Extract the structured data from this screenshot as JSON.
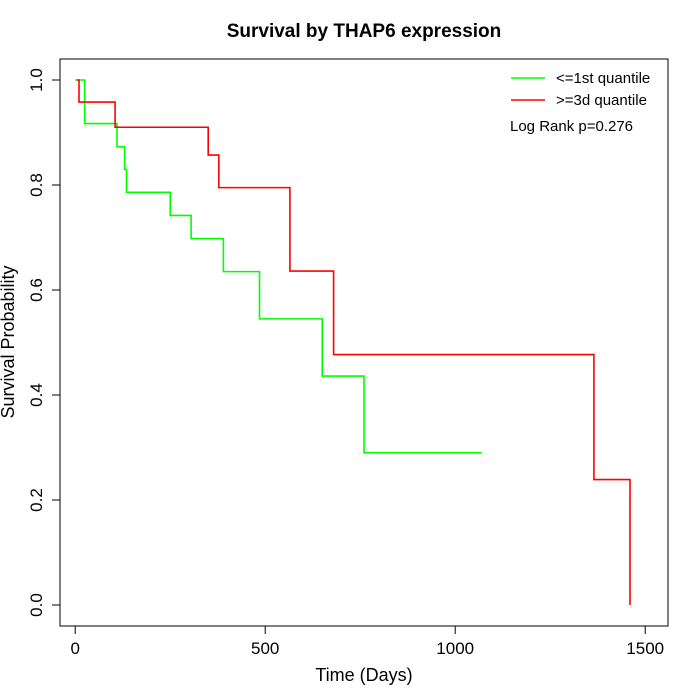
{
  "chart_data": {
    "type": "line",
    "title": "Survival by THAP6 expression",
    "xlabel": "Time (Days)",
    "ylabel": "Survival Probability",
    "xlim": [
      -40,
      1560
    ],
    "ylim": [
      -0.04,
      1.04
    ],
    "x_ticks": [
      0,
      500,
      1000,
      1500
    ],
    "y_ticks": [
      0.0,
      0.2,
      0.4,
      0.6,
      0.8,
      1.0
    ],
    "x_tick_labels": [
      "0",
      "500",
      "1000",
      "1500"
    ],
    "y_tick_labels": [
      "0.0",
      "0.2",
      "0.4",
      "0.6",
      "0.8",
      "1.0"
    ],
    "grid": false,
    "legend_position": "top-right",
    "annotation": "Log Rank p=0.276",
    "series": [
      {
        "name": "<=1st quantile",
        "color": "#00ff00",
        "steps": [
          [
            0,
            1.0
          ],
          [
            25,
            0.917
          ],
          [
            110,
            0.873
          ],
          [
            130,
            0.83
          ],
          [
            135,
            0.786
          ],
          [
            250,
            0.742
          ],
          [
            305,
            0.698
          ],
          [
            390,
            0.635
          ],
          [
            485,
            0.545
          ],
          [
            650,
            0.436
          ],
          [
            760,
            0.29
          ],
          [
            1070,
            0.29
          ]
        ]
      },
      {
        "name": ">=3d quantile",
        "color": "#ff0000",
        "steps": [
          [
            5,
            1.0
          ],
          [
            10,
            0.958
          ],
          [
            105,
            0.91
          ],
          [
            350,
            0.857
          ],
          [
            378,
            0.795
          ],
          [
            565,
            0.636
          ],
          [
            680,
            0.477
          ],
          [
            1365,
            0.239
          ],
          [
            1460,
            0.0
          ]
        ]
      }
    ]
  }
}
